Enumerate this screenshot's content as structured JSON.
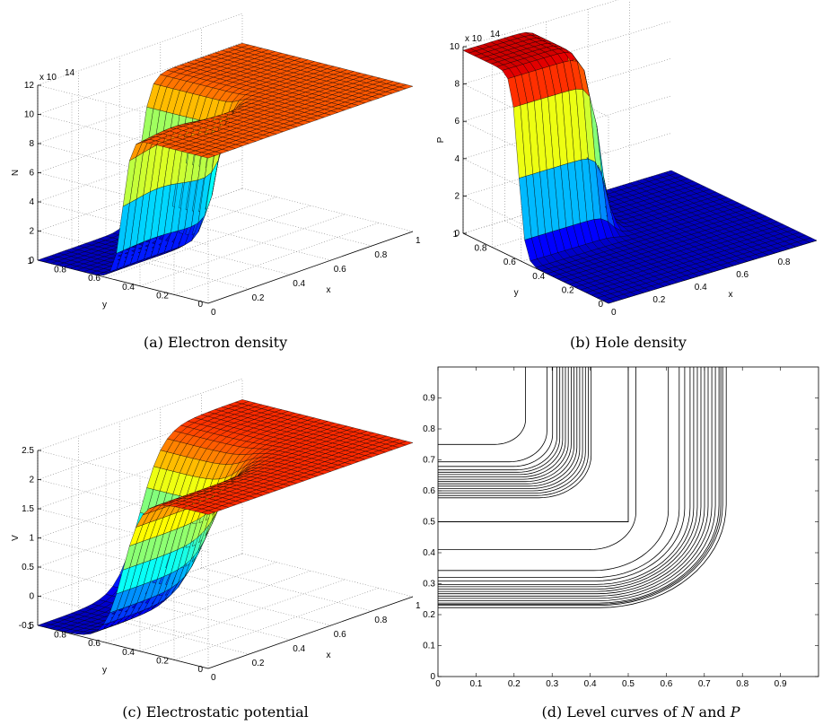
{
  "captions": {
    "a": "(a) Electron density",
    "b": "(b) Hole density",
    "c": "(c) Electrostatic potential",
    "d_prefix": "(d) Level curves of ",
    "d_n": "N",
    "d_and": " and ",
    "d_p": "P"
  },
  "chart_data": [
    {
      "id": "a",
      "type": "surface",
      "title": "",
      "xlabel": "x",
      "ylabel": "y",
      "zlabel": "N",
      "z_exponent_label": "x 10",
      "z_exponent": "14",
      "zlim": [
        0,
        12
      ],
      "z_ticks": [
        "0",
        "2",
        "4",
        "6",
        "8",
        "10",
        "12"
      ],
      "x_ticks": [
        "0",
        "0.2",
        "0.4",
        "0.6",
        "0.8",
        "1"
      ],
      "y_ticks": [
        "0",
        "0.2",
        "0.4",
        "0.6",
        "0.8",
        "1"
      ],
      "grid": true,
      "colormap": [
        "#00008f",
        "#0000ff",
        "#0080ff",
        "#00ffff",
        "#80ff80",
        "#ffff00",
        "#ff8000",
        "#ff0000",
        "#800000"
      ],
      "levels": {
        "low": 0,
        "high": 10,
        "mid_step": 5
      },
      "junction": 0.5
    },
    {
      "id": "b",
      "type": "surface",
      "title": "",
      "xlabel": "x",
      "ylabel": "y",
      "zlabel": "P",
      "z_exponent_label": "x 10",
      "z_exponent": "14",
      "zlim": [
        0,
        10
      ],
      "z_ticks": [
        "0",
        "2",
        "4",
        "6",
        "8",
        "10"
      ],
      "x_ticks": [
        "0",
        "0.2",
        "0.4",
        "0.6",
        "0.8"
      ],
      "y_ticks": [
        "0",
        "0.2",
        "0.4",
        "0.6",
        "0.8",
        "1"
      ],
      "grid": true,
      "colormap": [
        "#00008f",
        "#0000ff",
        "#0080ff",
        "#00ffff",
        "#80ff80",
        "#ffff00",
        "#ff8000",
        "#ff0000",
        "#800000"
      ],
      "levels": {
        "low": 0,
        "high": 10
      },
      "junction": 0.5
    },
    {
      "id": "c",
      "type": "surface",
      "title": "",
      "xlabel": "x",
      "ylabel": "y",
      "zlabel": "V",
      "zlim": [
        -0.5,
        2.5
      ],
      "z_ticks": [
        "-0.5",
        "0",
        "0.5",
        "1",
        "1.5",
        "2",
        "2.5"
      ],
      "x_ticks": [
        "0",
        "0.2",
        "0.4",
        "0.6",
        "0.8",
        "1"
      ],
      "y_ticks": [
        "0",
        "0.2",
        "0.4",
        "0.6",
        "0.8",
        "1"
      ],
      "grid": true,
      "colormap": [
        "#00008f",
        "#0000ff",
        "#0080ff",
        "#00ffff",
        "#80ff80",
        "#ffff00",
        "#ff8000",
        "#ff0000",
        "#800000"
      ],
      "levels": {
        "low": -0.4,
        "high": 2.2,
        "mid_step": 1.0
      },
      "junction": 0.5
    },
    {
      "id": "d",
      "type": "contour",
      "title": "",
      "xlabel": "",
      "ylabel": "",
      "xlim": [
        0,
        1
      ],
      "ylim": [
        0,
        1
      ],
      "x_ticks": [
        "0",
        "0.1",
        "0.2",
        "0.3",
        "0.4",
        "0.5",
        "0.6",
        "0.7",
        "0.8",
        "0.9"
      ],
      "y_ticks": [
        "0",
        "0.1",
        "0.2",
        "0.3",
        "0.4",
        "0.5",
        "0.6",
        "0.7",
        "0.8",
        "0.9"
      ],
      "p_region_boundary": {
        "x": 0.5,
        "y": 0.5
      },
      "p_levels_offsets": [
        0.0,
        0.075,
        0.095,
        0.11,
        0.12,
        0.13,
        0.14,
        0.15,
        0.16,
        0.17,
        0.18,
        0.19,
        0.2,
        0.21,
        0.22,
        0.23
      ],
      "n_levels_offsets": [
        0.0,
        0.09,
        0.12,
        0.135,
        0.15,
        0.16,
        0.17,
        0.18,
        0.19,
        0.2,
        0.21,
        0.22,
        0.23,
        0.235,
        0.24,
        0.25
      ]
    }
  ]
}
